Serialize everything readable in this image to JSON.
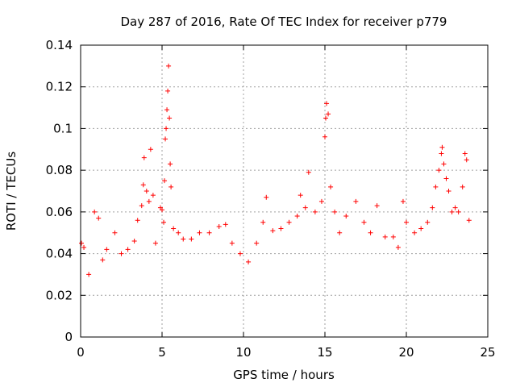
{
  "chart_data": {
    "type": "scatter",
    "title": "Day 287 of 2016, Rate Of TEC Index for receiver p779",
    "xlabel": "GPS time / hours",
    "ylabel": "ROTI / TECUs",
    "xlim": [
      0,
      25
    ],
    "ylim": [
      0,
      0.14
    ],
    "grid": true,
    "marker": "+",
    "marker_color": "#ff0000",
    "x_ticks": [
      0,
      5,
      10,
      15,
      20,
      25
    ],
    "x_tick_labels": [
      "0",
      "5",
      "10",
      "15",
      "20",
      "25"
    ],
    "y_ticks": [
      0,
      0.02,
      0.04,
      0.06,
      0.08,
      0.1,
      0.12,
      0.14
    ],
    "y_tick_labels": [
      "0",
      "0.02",
      "0.04",
      "0.06",
      "0.08",
      "0.1",
      "0.12",
      "0.14"
    ],
    "series": [
      {
        "name": "p779",
        "points_xy": [
          [
            0.05,
            0.045
          ],
          [
            0.2,
            0.043
          ],
          [
            0.5,
            0.03
          ],
          [
            0.85,
            0.06
          ],
          [
            1.1,
            0.057
          ],
          [
            1.35,
            0.037
          ],
          [
            1.6,
            0.042
          ],
          [
            2.1,
            0.05
          ],
          [
            2.5,
            0.04
          ],
          [
            2.9,
            0.042
          ],
          [
            3.3,
            0.046
          ],
          [
            3.5,
            0.056
          ],
          [
            3.75,
            0.063
          ],
          [
            3.85,
            0.073
          ],
          [
            3.9,
            0.086
          ],
          [
            4.05,
            0.07
          ],
          [
            4.2,
            0.065
          ],
          [
            4.3,
            0.09
          ],
          [
            4.45,
            0.068
          ],
          [
            4.6,
            0.045
          ],
          [
            4.9,
            0.062
          ],
          [
            5.0,
            0.061
          ],
          [
            5.1,
            0.055
          ],
          [
            5.15,
            0.075
          ],
          [
            5.2,
            0.095
          ],
          [
            5.25,
            0.1
          ],
          [
            5.3,
            0.109
          ],
          [
            5.35,
            0.118
          ],
          [
            5.4,
            0.13
          ],
          [
            5.45,
            0.105
          ],
          [
            5.5,
            0.083
          ],
          [
            5.55,
            0.072
          ],
          [
            5.7,
            0.052
          ],
          [
            6.0,
            0.05
          ],
          [
            6.3,
            0.047
          ],
          [
            6.8,
            0.047
          ],
          [
            7.3,
            0.05
          ],
          [
            7.9,
            0.05
          ],
          [
            8.5,
            0.053
          ],
          [
            8.9,
            0.054
          ],
          [
            9.3,
            0.045
          ],
          [
            9.8,
            0.04
          ],
          [
            10.3,
            0.036
          ],
          [
            10.8,
            0.045
          ],
          [
            11.2,
            0.055
          ],
          [
            11.4,
            0.067
          ],
          [
            11.8,
            0.051
          ],
          [
            12.3,
            0.052
          ],
          [
            12.8,
            0.055
          ],
          [
            13.3,
            0.058
          ],
          [
            13.5,
            0.068
          ],
          [
            13.8,
            0.062
          ],
          [
            14.0,
            0.079
          ],
          [
            14.4,
            0.06
          ],
          [
            14.8,
            0.065
          ],
          [
            15.0,
            0.096
          ],
          [
            15.05,
            0.105
          ],
          [
            15.1,
            0.112
          ],
          [
            15.2,
            0.107
          ],
          [
            15.35,
            0.072
          ],
          [
            15.6,
            0.06
          ],
          [
            15.9,
            0.05
          ],
          [
            16.3,
            0.058
          ],
          [
            16.9,
            0.065
          ],
          [
            17.4,
            0.055
          ],
          [
            17.8,
            0.05
          ],
          [
            18.2,
            0.063
          ],
          [
            18.7,
            0.048
          ],
          [
            19.2,
            0.048
          ],
          [
            19.5,
            0.043
          ],
          [
            19.8,
            0.065
          ],
          [
            20.0,
            0.055
          ],
          [
            20.5,
            0.05
          ],
          [
            20.9,
            0.052
          ],
          [
            21.3,
            0.055
          ],
          [
            21.6,
            0.062
          ],
          [
            21.8,
            0.072
          ],
          [
            22.0,
            0.08
          ],
          [
            22.15,
            0.088
          ],
          [
            22.2,
            0.091
          ],
          [
            22.3,
            0.083
          ],
          [
            22.45,
            0.076
          ],
          [
            22.6,
            0.07
          ],
          [
            22.8,
            0.06
          ],
          [
            23.0,
            0.062
          ],
          [
            23.2,
            0.06
          ],
          [
            23.45,
            0.072
          ],
          [
            23.6,
            0.088
          ],
          [
            23.7,
            0.085
          ],
          [
            23.85,
            0.056
          ]
        ]
      }
    ]
  }
}
